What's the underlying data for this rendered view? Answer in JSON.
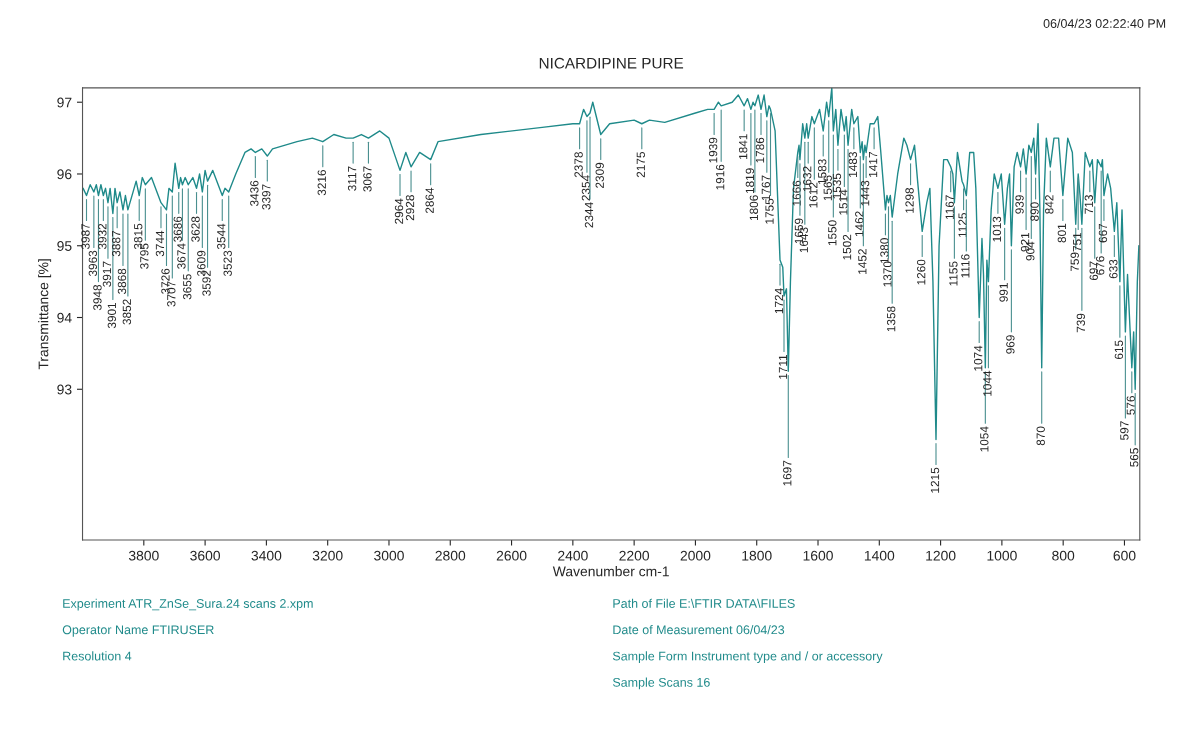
{
  "chart_data": {
    "type": "line",
    "title": "NICARDIPINE PURE",
    "xlabel": "Wavenumber cm-1",
    "ylabel": "Transmittance [%]",
    "xlim": [
      4000,
      550
    ],
    "xticks": [
      3800,
      3600,
      3400,
      3200,
      3000,
      2800,
      2600,
      2400,
      2200,
      2000,
      1800,
      1600,
      1400,
      1200,
      1000,
      800,
      600
    ],
    "ylim": [
      90.9,
      97.2
    ],
    "yticks": [
      93,
      94,
      95,
      96,
      97
    ],
    "grid": false,
    "legend": false,
    "series": [
      {
        "color": "#1f8a8a",
        "x": [
          3998,
          3987,
          3975,
          3963,
          3955,
          3948,
          3940,
          3932,
          3925,
          3917,
          3910,
          3901,
          3894,
          3887,
          3878,
          3868,
          3860,
          3852,
          3835,
          3825,
          3815,
          3805,
          3795,
          3775,
          3744,
          3726,
          3718,
          3707,
          3698,
          3686,
          3680,
          3674,
          3665,
          3655,
          3640,
          3628,
          3618,
          3609,
          3600,
          3592,
          3575,
          3544,
          3535,
          3523,
          3500,
          3470,
          3450,
          3436,
          3415,
          3397,
          3380,
          3300,
          3250,
          3216,
          3180,
          3140,
          3117,
          3090,
          3067,
          3030,
          3000,
          2964,
          2945,
          2928,
          2900,
          2864,
          2840,
          2700,
          2500,
          2400,
          2378,
          2365,
          2354,
          2344,
          2335,
          2309,
          2280,
          2200,
          2175,
          2150,
          2100,
          2000,
          1960,
          1939,
          1925,
          1916,
          1880,
          1860,
          1841,
          1830,
          1819,
          1812,
          1806,
          1795,
          1786,
          1776,
          1767,
          1760,
          1755,
          1740,
          1724,
          1715,
          1711,
          1703,
          1697,
          1690,
          1680,
          1666,
          1662,
          1659,
          1650,
          1643,
          1637,
          1632,
          1620,
          1612,
          1595,
          1583,
          1572,
          1565,
          1555,
          1550,
          1542,
          1535,
          1525,
          1514,
          1508,
          1502,
          1490,
          1483,
          1470,
          1462,
          1456,
          1452,
          1447,
          1443,
          1430,
          1417,
          1405,
          1395,
          1380,
          1375,
          1370,
          1364,
          1358,
          1340,
          1320,
          1310,
          1298,
          1285,
          1275,
          1260,
          1245,
          1235,
          1225,
          1215,
          1205,
          1190,
          1178,
          1167,
          1160,
          1155,
          1145,
          1130,
          1125,
          1116,
          1105,
          1092,
          1085,
          1074,
          1065,
          1060,
          1054,
          1049,
          1044,
          1035,
          1025,
          1013,
          1002,
          991,
          982,
          975,
          969,
          960,
          950,
          939,
          930,
          921,
          912,
          904,
          896,
          890,
          882,
          876,
          870,
          864,
          855,
          842,
          830,
          815,
          801,
          785,
          770,
          759,
          751,
          745,
          739,
          728,
          713,
          705,
          697,
          688,
          676,
          672,
          667,
          655,
          645,
          633,
          625,
          615,
          608,
          597,
          590,
          576,
          570,
          565,
          558,
          553
        ],
        "values": [
          95.8,
          95.7,
          95.85,
          95.75,
          95.85,
          95.7,
          95.85,
          95.7,
          95.8,
          95.6,
          95.8,
          95.45,
          95.8,
          95.6,
          95.75,
          95.5,
          95.7,
          95.5,
          95.75,
          95.9,
          95.7,
          95.95,
          95.85,
          95.95,
          95.6,
          95.5,
          95.8,
          95.75,
          96.15,
          95.8,
          95.95,
          95.85,
          95.95,
          95.85,
          95.95,
          95.8,
          96.0,
          95.75,
          96.05,
          95.9,
          96.05,
          95.7,
          95.8,
          95.75,
          96.0,
          96.3,
          96.35,
          96.3,
          96.35,
          96.25,
          96.35,
          96.45,
          96.5,
          96.45,
          96.55,
          96.5,
          96.5,
          96.55,
          96.5,
          96.6,
          96.5,
          96.05,
          96.3,
          96.1,
          96.3,
          96.2,
          96.45,
          96.55,
          96.65,
          96.7,
          96.7,
          96.9,
          96.8,
          96.85,
          97.0,
          96.55,
          96.7,
          96.75,
          96.7,
          96.75,
          96.72,
          96.85,
          96.9,
          96.9,
          97.0,
          96.95,
          97.0,
          97.1,
          96.95,
          97.05,
          96.9,
          97.0,
          96.95,
          97.1,
          96.9,
          97.1,
          96.8,
          96.95,
          96.9,
          96.6,
          94.8,
          94.7,
          94.3,
          94.4,
          93.25,
          94.5,
          95.8,
          96.3,
          96.4,
          96.2,
          96.7,
          96.5,
          96.7,
          96.5,
          96.8,
          96.7,
          96.9,
          96.6,
          97.0,
          96.8,
          97.2,
          96.6,
          96.9,
          96.4,
          96.9,
          96.6,
          96.8,
          96.4,
          96.9,
          96.7,
          96.8,
          96.3,
          96.45,
          96.2,
          96.4,
          96.3,
          96.7,
          96.7,
          96.8,
          96.3,
          95.5,
          95.7,
          95.6,
          95.7,
          95.4,
          96.0,
          96.5,
          96.4,
          96.2,
          96.4,
          95.9,
          95.2,
          95.6,
          95.8,
          94.5,
          92.3,
          95.0,
          96.2,
          96.2,
          96.1,
          96.0,
          95.6,
          96.3,
          95.9,
          95.85,
          95.7,
          96.3,
          96.3,
          95.8,
          94.0,
          95.1,
          94.6,
          93.3,
          94.8,
          94.5,
          95.5,
          96.0,
          95.8,
          96.0,
          95.3,
          95.8,
          96.0,
          95.0,
          96.1,
          96.3,
          96.1,
          96.35,
          96.0,
          96.4,
          96.3,
          96.5,
          96.0,
          96.7,
          95.5,
          93.3,
          95.5,
          96.5,
          96.1,
          96.5,
          96.5,
          95.7,
          96.5,
          96.3,
          95.3,
          96.0,
          95.7,
          95.3,
          96.3,
          96.1,
          96.2,
          95.6,
          96.2,
          96.1,
          96.2,
          95.7,
          96.0,
          95.8,
          95.2,
          95.6,
          94.5,
          95.5,
          93.8,
          94.6,
          93.3,
          93.8,
          93.0,
          94.5,
          95.0
        ]
      }
    ],
    "annotations": [
      "06/04/23 02:22:40 PM",
      "Experiment ATR_ZnSe_Sura.24 scans 2.xpm",
      "Operator Name FTIRUSER",
      "Resolution 4",
      "Path of File E:\\FTIR DATA\\FILES",
      "Date of Measurement 06/04/23",
      "Sample Form Instrument type and / or accessory",
      "Sample Scans 16",
      {
        "text": "3987",
        "x": 3987,
        "y": 95.7
      },
      {
        "text": "3963",
        "x": 3963,
        "y": 95.75
      },
      {
        "text": "3948",
        "x": 3948,
        "y": 95.7
      },
      {
        "text": "3932",
        "x": 3932,
        "y": 95.7
      },
      {
        "text": "3917",
        "x": 3917,
        "y": 95.6
      },
      {
        "text": "3901",
        "x": 3901,
        "y": 95.45
      },
      {
        "text": "3887",
        "x": 3887,
        "y": 95.6
      },
      {
        "text": "3868",
        "x": 3868,
        "y": 95.5
      },
      {
        "text": "3852",
        "x": 3852,
        "y": 95.5
      },
      {
        "text": "3815",
        "x": 3815,
        "y": 95.7
      },
      {
        "text": "3795",
        "x": 3795,
        "y": 95.85
      },
      {
        "text": "3744",
        "x": 3744,
        "y": 95.6
      },
      {
        "text": "3726",
        "x": 3726,
        "y": 95.5
      },
      {
        "text": "3707",
        "x": 3707,
        "y": 95.75
      },
      {
        "text": "3686",
        "x": 3686,
        "y": 95.8
      },
      {
        "text": "3674",
        "x": 3674,
        "y": 95.85
      },
      {
        "text": "3655",
        "x": 3655,
        "y": 95.85
      },
      {
        "text": "3628",
        "x": 3628,
        "y": 95.8
      },
      {
        "text": "3609",
        "x": 3609,
        "y": 95.75
      },
      {
        "text": "3592",
        "x": 3592,
        "y": 95.9
      },
      {
        "text": "3544",
        "x": 3544,
        "y": 95.7
      },
      {
        "text": "3523",
        "x": 3523,
        "y": 95.75
      },
      {
        "text": "3436",
        "x": 3436,
        "y": 96.3
      },
      {
        "text": "3397",
        "x": 3397,
        "y": 96.25
      },
      {
        "text": "3216",
        "x": 3216,
        "y": 96.45
      },
      {
        "text": "3117",
        "x": 3117,
        "y": 96.5
      },
      {
        "text": "3067",
        "x": 3067,
        "y": 96.5
      },
      {
        "text": "2964",
        "x": 2964,
        "y": 96.05
      },
      {
        "text": "2928",
        "x": 2928,
        "y": 96.1
      },
      {
        "text": "2864",
        "x": 2864,
        "y": 96.2
      },
      {
        "text": "2378",
        "x": 2378,
        "y": 96.7
      },
      {
        "text": "2354",
        "x": 2354,
        "y": 96.8
      },
      {
        "text": "2344",
        "x": 2344,
        "y": 96.85
      },
      {
        "text": "2309",
        "x": 2309,
        "y": 96.55
      },
      {
        "text": "2175",
        "x": 2175,
        "y": 96.7
      },
      {
        "text": "1939",
        "x": 1939,
        "y": 96.9
      },
      {
        "text": "1916",
        "x": 1916,
        "y": 96.95
      },
      {
        "text": "1841",
        "x": 1841,
        "y": 96.95
      },
      {
        "text": "1819",
        "x": 1819,
        "y": 96.9
      },
      {
        "text": "1806",
        "x": 1806,
        "y": 96.95
      },
      {
        "text": "1786",
        "x": 1786,
        "y": 96.9
      },
      {
        "text": "1767",
        "x": 1767,
        "y": 96.8
      },
      {
        "text": "1755",
        "x": 1755,
        "y": 96.9
      },
      {
        "text": "1724",
        "x": 1724,
        "y": 94.8
      },
      {
        "text": "1711",
        "x": 1711,
        "y": 94.3
      },
      {
        "text": "1697",
        "x": 1697,
        "y": 93.25
      },
      {
        "text": "1666",
        "x": 1666,
        "y": 96.3
      },
      {
        "text": "1659",
        "x": 1659,
        "y": 96.2
      },
      {
        "text": "1643",
        "x": 1643,
        "y": 96.5
      },
      {
        "text": "1632",
        "x": 1632,
        "y": 96.5
      },
      {
        "text": "1612",
        "x": 1612,
        "y": 96.7
      },
      {
        "text": "1583",
        "x": 1583,
        "y": 96.6
      },
      {
        "text": "1565",
        "x": 1565,
        "y": 96.8
      },
      {
        "text": "1550",
        "x": 1550,
        "y": 96.6
      },
      {
        "text": "1535",
        "x": 1535,
        "y": 96.4
      },
      {
        "text": "1514",
        "x": 1514,
        "y": 96.6
      },
      {
        "text": "1502",
        "x": 1502,
        "y": 96.4
      },
      {
        "text": "1483",
        "x": 1483,
        "y": 96.7
      },
      {
        "text": "1462",
        "x": 1462,
        "y": 96.3
      },
      {
        "text": "1452",
        "x": 1452,
        "y": 96.2
      },
      {
        "text": "1443",
        "x": 1443,
        "y": 96.3
      },
      {
        "text": "1417",
        "x": 1417,
        "y": 96.7
      },
      {
        "text": "1380",
        "x": 1380,
        "y": 95.5
      },
      {
        "text": "1370",
        "x": 1370,
        "y": 95.6
      },
      {
        "text": "1358",
        "x": 1358,
        "y": 95.4
      },
      {
        "text": "1298",
        "x": 1298,
        "y": 96.2
      },
      {
        "text": "1260",
        "x": 1260,
        "y": 95.2
      },
      {
        "text": "1215",
        "x": 1215,
        "y": 92.3
      },
      {
        "text": "1167",
        "x": 1167,
        "y": 96.1
      },
      {
        "text": "1155",
        "x": 1155,
        "y": 95.6
      },
      {
        "text": "1125",
        "x": 1125,
        "y": 95.85
      },
      {
        "text": "1116",
        "x": 1116,
        "y": 95.7
      },
      {
        "text": "1074",
        "x": 1074,
        "y": 94.0
      },
      {
        "text": "1054",
        "x": 1054,
        "y": 93.3
      },
      {
        "text": "1044",
        "x": 1044,
        "y": 94.5
      },
      {
        "text": "1013",
        "x": 1013,
        "y": 95.8
      },
      {
        "text": "991",
        "x": 991,
        "y": 95.3
      },
      {
        "text": "969",
        "x": 969,
        "y": 95.0
      },
      {
        "text": "939",
        "x": 939,
        "y": 96.1
      },
      {
        "text": "921",
        "x": 921,
        "y": 96.0
      },
      {
        "text": "904",
        "x": 904,
        "y": 96.3
      },
      {
        "text": "890",
        "x": 890,
        "y": 96.0
      },
      {
        "text": "870",
        "x": 870,
        "y": 93.3
      },
      {
        "text": "842",
        "x": 842,
        "y": 96.1
      },
      {
        "text": "801",
        "x": 801,
        "y": 95.7
      },
      {
        "text": "759",
        "x": 759,
        "y": 95.3
      },
      {
        "text": "751",
        "x": 751,
        "y": 96.0
      },
      {
        "text": "739",
        "x": 739,
        "y": 95.3
      },
      {
        "text": "713",
        "x": 713,
        "y": 96.1
      },
      {
        "text": "697",
        "x": 697,
        "y": 95.6
      },
      {
        "text": "676",
        "x": 676,
        "y": 96.1
      },
      {
        "text": "667",
        "x": 667,
        "y": 95.7
      },
      {
        "text": "633",
        "x": 633,
        "y": 95.2
      },
      {
        "text": "615",
        "x": 615,
        "y": 94.5
      },
      {
        "text": "597",
        "x": 597,
        "y": 93.8
      },
      {
        "text": "576",
        "x": 576,
        "y": 93.3
      },
      {
        "text": "565",
        "x": 565,
        "y": 93.0
      }
    ]
  }
}
